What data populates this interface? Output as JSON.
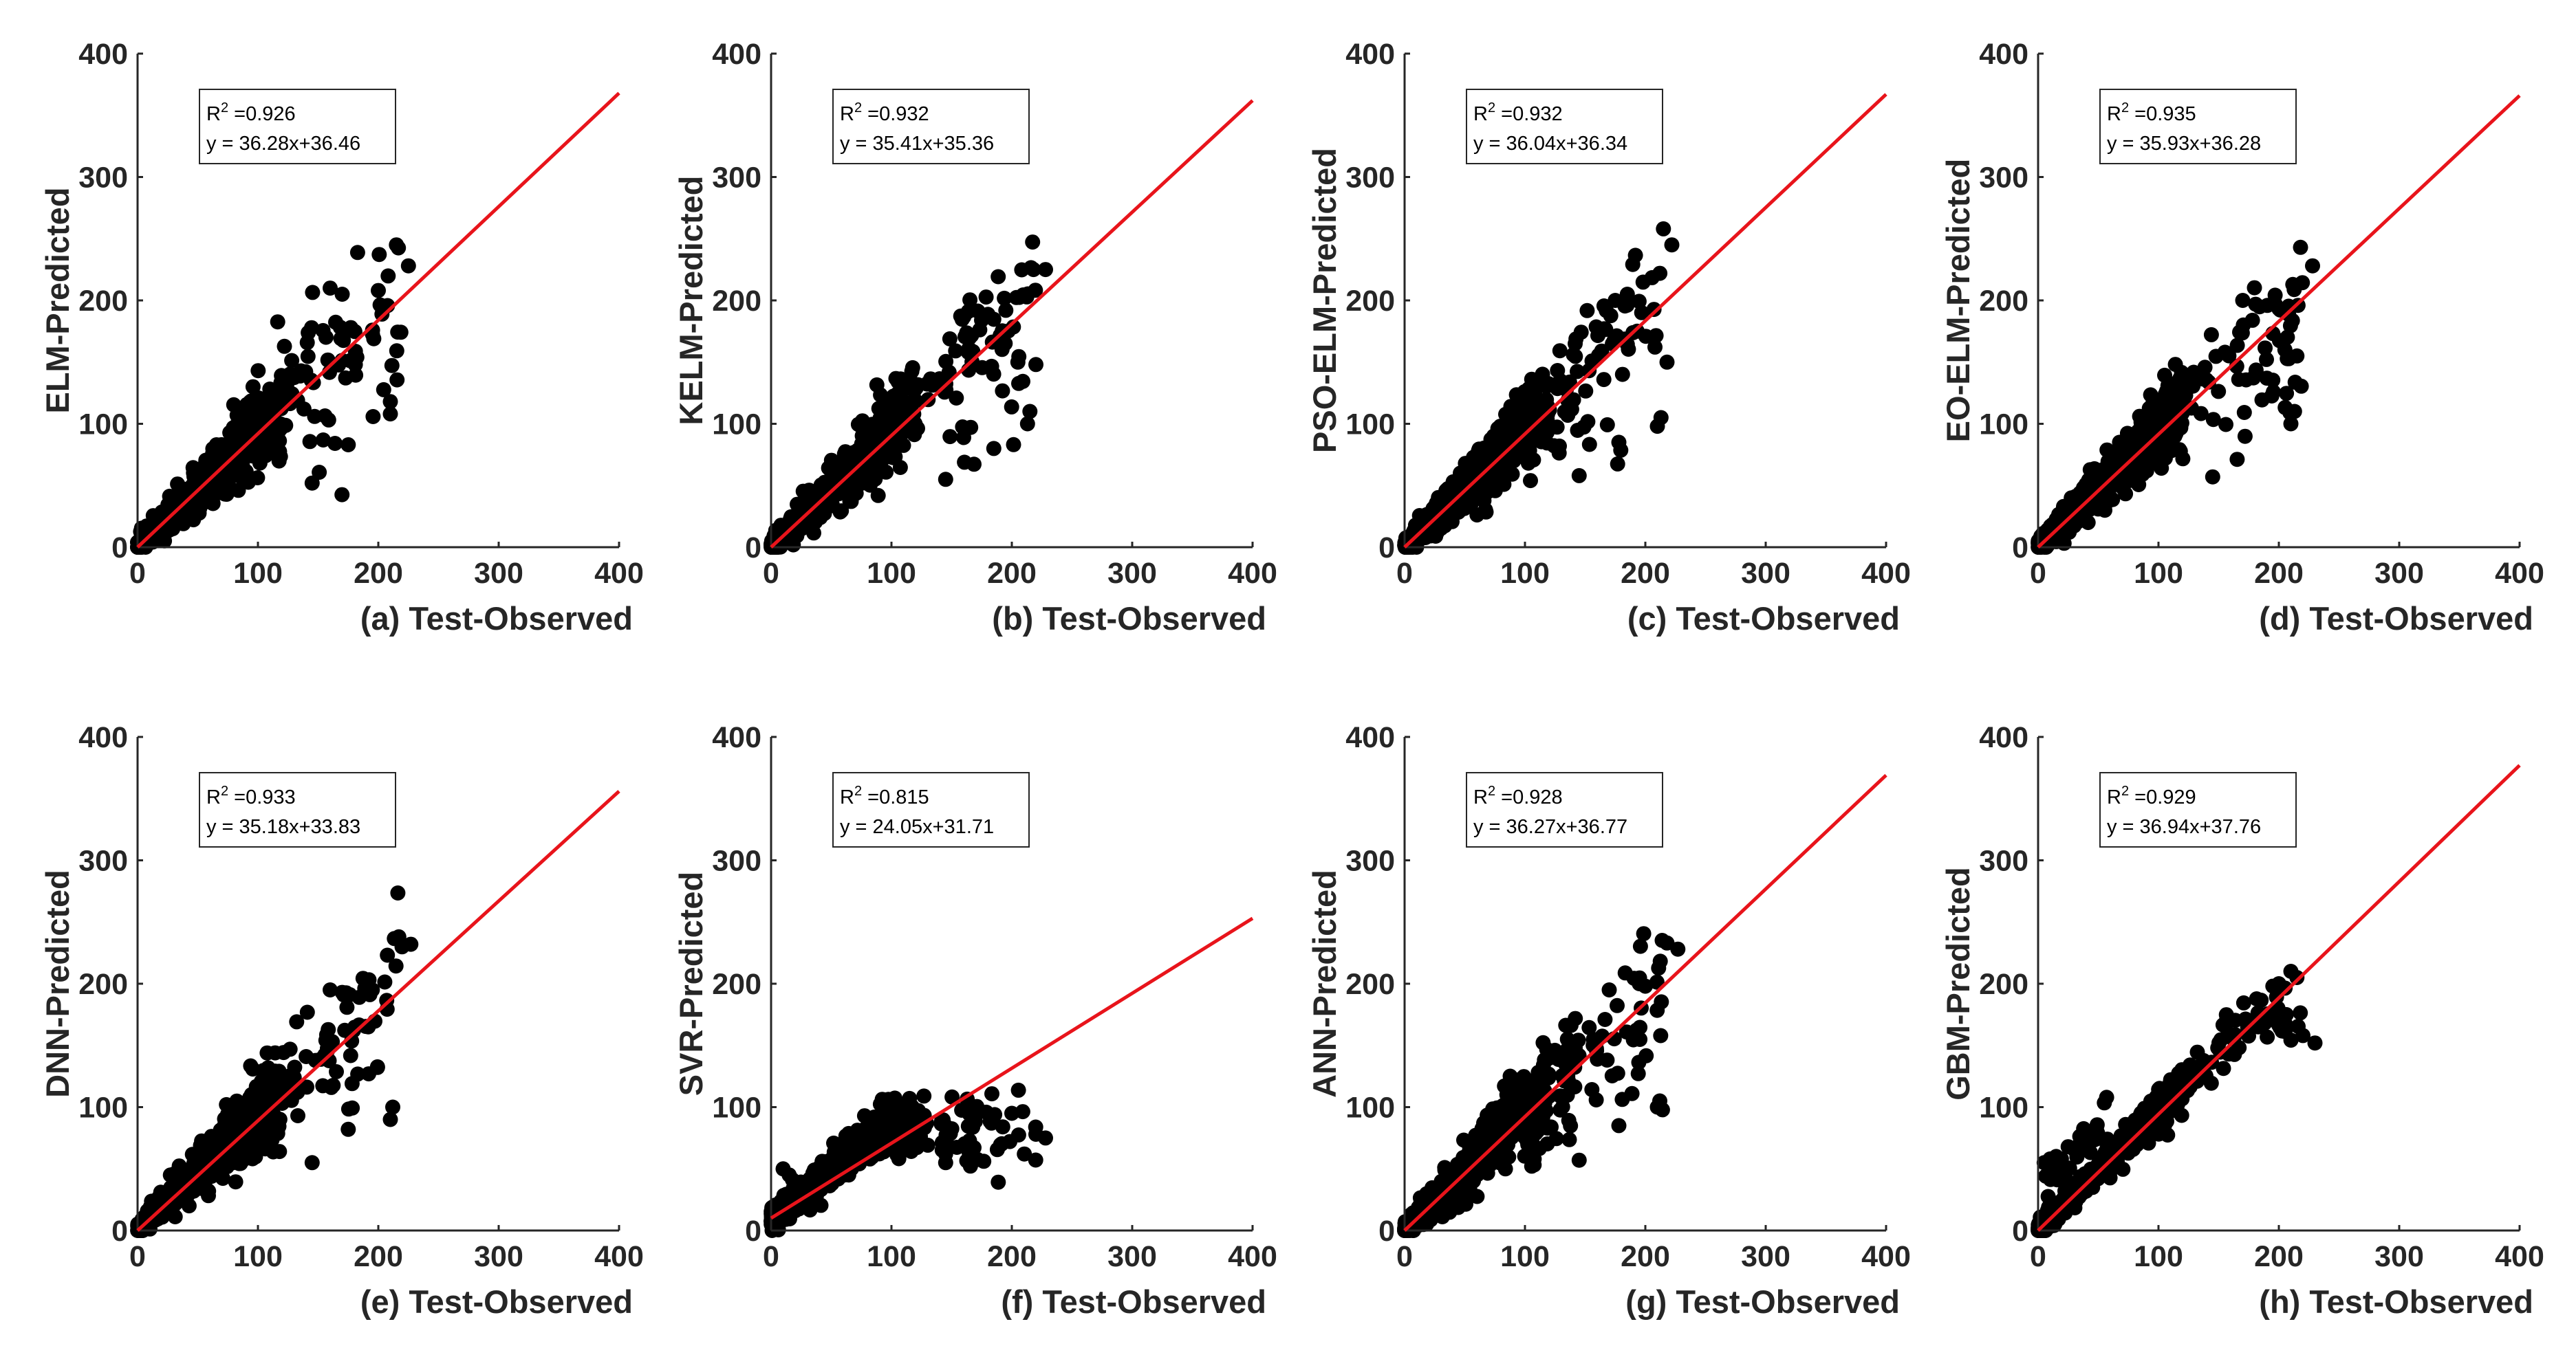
{
  "figure": {
    "line_color": "#e8141b",
    "point_color": "#000000"
  },
  "chart_data": [
    {
      "type": "scatter",
      "panel": "a",
      "xlabel": "(a) Test-Observed",
      "ylabel": "ELM-Predicted",
      "xlim": [
        0,
        400
      ],
      "ylim": [
        0,
        400
      ],
      "xticks": [
        "0",
        "100",
        "200",
        "300",
        "400"
      ],
      "yticks": [
        "0",
        "100",
        "200",
        "300",
        "400"
      ],
      "annotation": {
        "r2_label": "R",
        "r2_sup": "2",
        "r2_value": " =0.926",
        "equation": "y = 36.28x+36.46"
      },
      "fit_line": {
        "x": [
          0,
          400
        ],
        "y": [
          0,
          368
        ]
      },
      "spread": 0.1,
      "tail_sparse": true,
      "seed": 11,
      "extra_points": [
        [
          215,
          245
        ],
        [
          225,
          228
        ],
        [
          210,
          118
        ],
        [
          210,
          108
        ],
        [
          175,
          83
        ],
        [
          145,
          52
        ],
        [
          200,
          208
        ],
        [
          160,
          210
        ],
        [
          170,
          205
        ]
      ]
    },
    {
      "type": "scatter",
      "panel": "b",
      "xlabel": "(b) Test-Observed",
      "ylabel": "KELM-Predicted",
      "xlim": [
        0,
        400
      ],
      "ylim": [
        0,
        400
      ],
      "xticks": [
        "0",
        "100",
        "200",
        "300",
        "400"
      ],
      "yticks": [
        "0",
        "100",
        "200",
        "300",
        "400"
      ],
      "annotation": {
        "r2_label": "R",
        "r2_sup": "2",
        "r2_value": " =0.932",
        "equation": "y = 35.41x+35.36"
      },
      "fit_line": {
        "x": [
          0,
          400
        ],
        "y": [
          0,
          362
        ]
      },
      "spread": 0.09,
      "tail_sparse": true,
      "seed": 23,
      "extra_points": [
        [
          218,
          225
        ],
        [
          228,
          225
        ],
        [
          215,
          110
        ],
        [
          213,
          100
        ],
        [
          185,
          80
        ],
        [
          145,
          55
        ],
        [
          195,
          192
        ],
        [
          205,
          150
        ],
        [
          220,
          148
        ]
      ]
    },
    {
      "type": "scatter",
      "panel": "c",
      "xlabel": "(c) Test-Observed",
      "ylabel": "PSO-ELM-Predicted",
      "xlim": [
        0,
        400
      ],
      "ylim": [
        0,
        400
      ],
      "xticks": [
        "0",
        "100",
        "200",
        "300",
        "400"
      ],
      "yticks": [
        "0",
        "100",
        "200",
        "300",
        "400"
      ],
      "annotation": {
        "r2_label": "R",
        "r2_sup": "2",
        "r2_value": " =0.932",
        "equation": "y = 36.04x+36.34"
      },
      "fit_line": {
        "x": [
          0,
          400
        ],
        "y": [
          0,
          367
        ]
      },
      "spread": 0.09,
      "tail_sparse": true,
      "seed": 37,
      "extra_points": [
        [
          215,
          258
        ],
        [
          222,
          245
        ],
        [
          213,
          105
        ],
        [
          210,
          98
        ],
        [
          178,
          85
        ],
        [
          145,
          58
        ],
        [
          185,
          205
        ],
        [
          175,
          200
        ],
        [
          218,
          150
        ]
      ]
    },
    {
      "type": "scatter",
      "panel": "d",
      "xlabel": "(d) Test-Observed",
      "ylabel": "EO-ELM-Predicted",
      "xlim": [
        0,
        400
      ],
      "ylim": [
        0,
        400
      ],
      "xticks": [
        "0",
        "100",
        "200",
        "300",
        "400"
      ],
      "yticks": [
        "0",
        "100",
        "200",
        "300",
        "400"
      ],
      "annotation": {
        "r2_label": "R",
        "r2_sup": "2",
        "r2_value": " =0.935",
        "equation": "y = 35.93x+36.28"
      },
      "fit_line": {
        "x": [
          0,
          400
        ],
        "y": [
          0,
          366
        ]
      },
      "spread": 0.09,
      "tail_sparse": true,
      "seed": 41,
      "extra_points": [
        [
          218,
          243
        ],
        [
          228,
          228
        ],
        [
          213,
          110
        ],
        [
          210,
          100
        ],
        [
          190,
          137
        ],
        [
          145,
          57
        ],
        [
          170,
          200
        ],
        [
          205,
          160
        ],
        [
          215,
          155
        ]
      ]
    },
    {
      "type": "scatter",
      "panel": "e",
      "xlabel": "(e) Test-Observed",
      "ylabel": "DNN-Predicted",
      "xlim": [
        0,
        400
      ],
      "ylim": [
        0,
        400
      ],
      "xticks": [
        "0",
        "100",
        "200",
        "300",
        "400"
      ],
      "yticks": [
        "0",
        "100",
        "200",
        "300",
        "400"
      ],
      "annotation": {
        "r2_label": "R",
        "r2_sup": "2",
        "r2_value": " =0.933",
        "equation": "y = 35.18x+33.83"
      },
      "fit_line": {
        "x": [
          0,
          400
        ],
        "y": [
          0,
          356
        ]
      },
      "spread": 0.1,
      "tail_sparse": true,
      "seed": 53,
      "extra_points": [
        [
          217,
          238
        ],
        [
          227,
          232
        ],
        [
          212,
          100
        ],
        [
          210,
          90
        ],
        [
          175,
          82
        ],
        [
          145,
          55
        ],
        [
          160,
          195
        ],
        [
          170,
          193
        ],
        [
          195,
          195
        ]
      ]
    },
    {
      "type": "scatter",
      "panel": "f",
      "mode": "svr",
      "xlabel": "(f) Test-Observed",
      "ylabel": "SVR-Predicted",
      "xlim": [
        0,
        400
      ],
      "ylim": [
        0,
        400
      ],
      "xticks": [
        "0",
        "100",
        "200",
        "300",
        "400"
      ],
      "yticks": [
        "0",
        "100",
        "200",
        "300",
        "400"
      ],
      "annotation": {
        "r2_label": "R",
        "r2_sup": "2",
        "r2_value": " =0.815",
        "equation": "y = 24.05x+31.71"
      },
      "fit_line": {
        "x": [
          0,
          400
        ],
        "y": [
          10,
          253
        ]
      },
      "spread": 0.1,
      "tail_sparse": true,
      "seed": 67,
      "extra_points": [
        [
          228,
          75
        ],
        [
          220,
          78
        ],
        [
          200,
          95
        ],
        [
          145,
          55
        ],
        [
          115,
          107
        ],
        [
          10,
          50
        ],
        [
          15,
          45
        ]
      ]
    },
    {
      "type": "scatter",
      "panel": "g",
      "xlabel": "(g) Test-Observed",
      "ylabel": "ANN-Predicted",
      "xlim": [
        0,
        400
      ],
      "ylim": [
        0,
        400
      ],
      "xticks": [
        "0",
        "100",
        "200",
        "300",
        "400"
      ],
      "yticks": [
        "0",
        "100",
        "200",
        "300",
        "400"
      ],
      "annotation": {
        "r2_label": "R",
        "r2_sup": "2",
        "r2_value": " =0.928",
        "equation": "y = 36.27x+36.77"
      },
      "fit_line": {
        "x": [
          0,
          400
        ],
        "y": [
          0,
          369
        ]
      },
      "spread": 0.1,
      "tail_sparse": true,
      "seed": 71,
      "extra_points": [
        [
          218,
          233
        ],
        [
          227,
          228
        ],
        [
          212,
          105
        ],
        [
          210,
          100
        ],
        [
          178,
          85
        ],
        [
          145,
          57
        ],
        [
          195,
          200
        ],
        [
          200,
          198
        ],
        [
          170,
          195
        ]
      ]
    },
    {
      "type": "scatter",
      "panel": "h",
      "mode": "gbm",
      "xlabel": "(h) Test-Observed",
      "ylabel": "GBM-Predicted",
      "xlim": [
        0,
        400
      ],
      "ylim": [
        0,
        400
      ],
      "xticks": [
        "0",
        "100",
        "200",
        "300",
        "400"
      ],
      "yticks": [
        "0",
        "100",
        "200",
        "300",
        "400"
      ],
      "annotation": {
        "r2_label": "R",
        "r2_sup": "2",
        "r2_value": " =0.929",
        "equation": "y = 36.94x+37.76"
      },
      "fit_line": {
        "x": [
          0,
          400
        ],
        "y": [
          0,
          377
        ]
      },
      "spread": 0.05,
      "tail_sparse": false,
      "seed": 83,
      "extra_points": [
        [
          210,
          210
        ],
        [
          215,
          205
        ],
        [
          230,
          152
        ],
        [
          220,
          158
        ],
        [
          200,
          200
        ],
        [
          195,
          198
        ],
        [
          5,
          55
        ],
        [
          10,
          58
        ],
        [
          15,
          60
        ],
        [
          8,
          45
        ]
      ]
    }
  ]
}
